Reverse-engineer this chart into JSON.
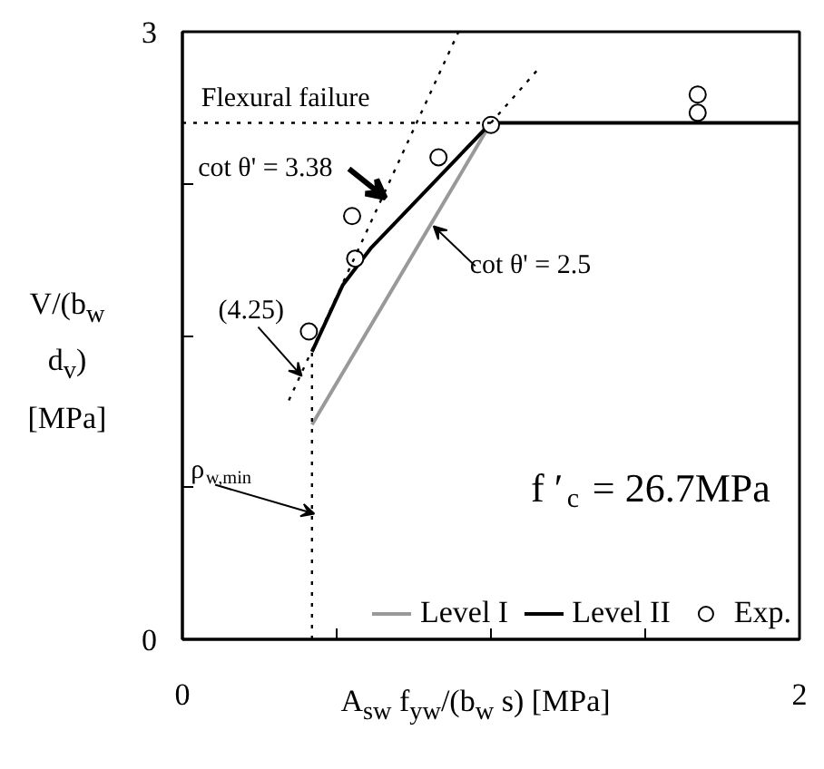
{
  "chart_data": {
    "type": "line",
    "xlabel": "A$_{sw}$ f$_{yw}$/(b$_{w}$ s) [MPa]",
    "ylabel": "V/(b$_{w}$ d$_{v}$) [MPa]",
    "xlim": [
      0,
      2
    ],
    "ylim": [
      0,
      3
    ],
    "xticks": [
      0,
      {
        "value": 0.5,
        "label": null
      },
      {
        "value": 1,
        "label": null
      },
      {
        "value": 1.5,
        "label": null
      },
      2
    ],
    "yticks": [
      0,
      {
        "value": 0.75,
        "label": null
      },
      {
        "value": 1.5,
        "label": null
      },
      {
        "value": 2.25,
        "label": null
      },
      3
    ],
    "grid": false,
    "legend": "bottom right",
    "series": [
      {
        "name": "Level I",
        "color": "#999999",
        "line_style": "solid",
        "x": [
          0.42,
          1.0
        ],
        "values": [
          1.06,
          2.55
        ]
      },
      {
        "name": "Level II",
        "color": "#000000",
        "line_style": "solid",
        "x": [
          0.42,
          0.52,
          0.61,
          1.0,
          2.0
        ],
        "values": [
          1.42,
          1.75,
          1.93,
          2.55,
          2.55
        ]
      },
      {
        "name": "Exp.",
        "type": "scatter",
        "marker": "circle",
        "color": "#000000",
        "x": [
          0.41,
          0.56,
          0.55,
          0.83,
          1.0,
          1.67,
          1.67
        ],
        "values": [
          1.52,
          1.88,
          2.09,
          2.38,
          2.54,
          2.6,
          2.69
        ]
      },
      {
        "color": "#000000",
        "line_style": "dotted",
        "x": [
          0.345,
          0.895
        ],
        "values": [
          1.18,
          3.0
        ]
      },
      {
        "color": "#000000",
        "line_style": "dotted",
        "x": [
          1.0,
          1.15
        ],
        "values": [
          2.55,
          2.81
        ]
      },
      {
        "color": "#000000",
        "line_style": "dotted",
        "x": [
          0,
          1.0
        ],
        "values": [
          2.55,
          2.55
        ]
      },
      {
        "color": "#000000",
        "line_style": "dotted",
        "x": [
          0.42,
          0.42
        ],
        "values": [
          0,
          1.42
        ]
      }
    ],
    "annotations": [
      "Flexural failure",
      {
        "text": "cot θ' = 3.38",
        "x": 0.646,
        "y": 2.18
      },
      {
        "text": "cot θ' = 2.5",
        "x": 0.8,
        "y": 2.04
      },
      {
        "text": "(4.25)",
        "x": 0.38,
        "y": 1.3
      },
      {
        "text": "ρ$_{w,min}$",
        "x": 0.42,
        "y": 0.62
      },
      "f ′$_{c}$ = 26.7MPa"
    ]
  }
}
